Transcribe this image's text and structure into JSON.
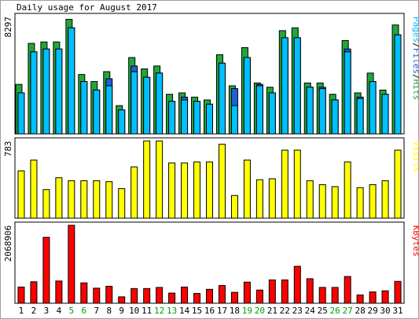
{
  "title": "Daily usage for August 2017",
  "colors": {
    "hits": "#1fa83a",
    "files": "#1f5fd8",
    "pages": "#00bfff",
    "visits": "#ffff00",
    "kbytes": "#ff0000",
    "weekend_label": "#00a000",
    "weekday_label": "#000000"
  },
  "chart_data": [
    {
      "type": "bar",
      "panel": "hits-files-pages",
      "ylabel_max": "8297",
      "legend_right": [
        "Pages",
        "Files",
        "Hits"
      ],
      "ylim": [
        0,
        8297
      ],
      "categories": [
        "1",
        "2",
        "3",
        "4",
        "5",
        "6",
        "7",
        "8",
        "9",
        "10",
        "11",
        "12",
        "13",
        "14",
        "15",
        "16",
        "17",
        "18",
        "19",
        "20",
        "21",
        "22",
        "23",
        "24",
        "25",
        "26",
        "27",
        "28",
        "29",
        "30",
        "31"
      ],
      "series": [
        {
          "name": "Hits",
          "values": [
            3500,
            6400,
            6500,
            6500,
            8100,
            4200,
            3700,
            4400,
            2000,
            5400,
            4600,
            4800,
            2800,
            2900,
            2600,
            2400,
            5600,
            3400,
            6100,
            3600,
            3300,
            7300,
            7500,
            3600,
            3600,
            2800,
            6600,
            2900,
            4300,
            3100,
            7700
          ]
        },
        {
          "name": "Files",
          "values": [
            2900,
            5800,
            6000,
            6000,
            7500,
            3700,
            3100,
            3900,
            1700,
            4800,
            4000,
            4300,
            2300,
            2600,
            2300,
            2100,
            5000,
            3200,
            5400,
            3500,
            2900,
            6800,
            6800,
            3300,
            3300,
            2400,
            6000,
            2600,
            3700,
            2800,
            7000
          ]
        },
        {
          "name": "Pages",
          "values": [
            2900,
            5800,
            6000,
            6000,
            7500,
            3700,
            3100,
            3400,
            1700,
            4400,
            4000,
            4300,
            2300,
            2400,
            2300,
            2100,
            5000,
            2000,
            5400,
            3400,
            2900,
            6800,
            6800,
            3300,
            3200,
            2400,
            5800,
            2500,
            3700,
            2800,
            7000
          ]
        }
      ]
    },
    {
      "type": "bar",
      "panel": "visits",
      "ylabel_max": "783",
      "legend_right": [
        "Visits"
      ],
      "ylim": [
        0,
        783
      ],
      "categories": [
        "1",
        "2",
        "3",
        "4",
        "5",
        "6",
        "7",
        "8",
        "9",
        "10",
        "11",
        "12",
        "13",
        "14",
        "15",
        "16",
        "17",
        "18",
        "19",
        "20",
        "21",
        "22",
        "23",
        "24",
        "25",
        "26",
        "27",
        "28",
        "29",
        "30",
        "31"
      ],
      "series": [
        {
          "name": "Visits",
          "values": [
            480,
            590,
            290,
            410,
            380,
            380,
            380,
            370,
            300,
            520,
            783,
            783,
            560,
            560,
            570,
            570,
            750,
            230,
            590,
            390,
            400,
            690,
            690,
            380,
            340,
            320,
            570,
            310,
            340,
            380,
            690
          ]
        }
      ]
    },
    {
      "type": "bar",
      "panel": "kbytes",
      "ylabel_max": "2068906",
      "legend_right": [
        "KBytes"
      ],
      "ylim": [
        0,
        2068906
      ],
      "categories": [
        "1",
        "2",
        "3",
        "4",
        "5",
        "6",
        "7",
        "8",
        "9",
        "10",
        "11",
        "12",
        "13",
        "14",
        "15",
        "16",
        "17",
        "18",
        "19",
        "20",
        "21",
        "22",
        "23",
        "24",
        "25",
        "26",
        "27",
        "28",
        "29",
        "30",
        "31"
      ],
      "series": [
        {
          "name": "KBytes",
          "values": [
            430000,
            570000,
            1750000,
            590000,
            2068906,
            540000,
            400000,
            450000,
            170000,
            390000,
            390000,
            420000,
            270000,
            430000,
            260000,
            370000,
            470000,
            290000,
            560000,
            350000,
            620000,
            620000,
            980000,
            650000,
            420000,
            420000,
            710000,
            220000,
            300000,
            330000,
            580000
          ]
        }
      ]
    }
  ],
  "days": [
    {
      "label": "1",
      "weekend": false
    },
    {
      "label": "2",
      "weekend": false
    },
    {
      "label": "3",
      "weekend": false
    },
    {
      "label": "4",
      "weekend": false
    },
    {
      "label": "5",
      "weekend": true
    },
    {
      "label": "6",
      "weekend": true
    },
    {
      "label": "7",
      "weekend": false
    },
    {
      "label": "8",
      "weekend": false
    },
    {
      "label": "9",
      "weekend": false
    },
    {
      "label": "10",
      "weekend": false
    },
    {
      "label": "11",
      "weekend": false
    },
    {
      "label": "12",
      "weekend": true
    },
    {
      "label": "13",
      "weekend": true
    },
    {
      "label": "14",
      "weekend": false
    },
    {
      "label": "15",
      "weekend": false
    },
    {
      "label": "16",
      "weekend": false
    },
    {
      "label": "17",
      "weekend": false
    },
    {
      "label": "18",
      "weekend": false
    },
    {
      "label": "19",
      "weekend": true
    },
    {
      "label": "20",
      "weekend": true
    },
    {
      "label": "21",
      "weekend": false
    },
    {
      "label": "22",
      "weekend": false
    },
    {
      "label": "23",
      "weekend": false
    },
    {
      "label": "24",
      "weekend": false
    },
    {
      "label": "25",
      "weekend": false
    },
    {
      "label": "26",
      "weekend": true
    },
    {
      "label": "27",
      "weekend": true
    },
    {
      "label": "28",
      "weekend": false
    },
    {
      "label": "29",
      "weekend": false
    },
    {
      "label": "30",
      "weekend": false
    },
    {
      "label": "31",
      "weekend": false
    }
  ]
}
